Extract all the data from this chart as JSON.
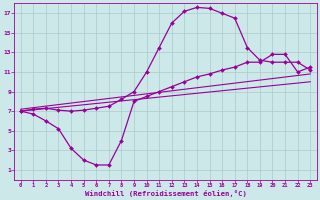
{
  "upper_x": [
    0,
    1,
    2,
    3,
    4,
    5,
    6,
    7,
    8,
    9,
    10,
    11,
    12,
    13,
    14,
    15,
    16,
    17,
    18,
    19,
    20,
    21,
    22,
    23
  ],
  "upper_y": [
    7.0,
    7.2,
    7.3,
    7.1,
    7.0,
    7.1,
    7.3,
    7.5,
    8.2,
    9.0,
    11.0,
    13.5,
    16.0,
    17.2,
    17.6,
    17.5,
    17.0,
    16.5,
    13.5,
    12.2,
    12.0,
    12.0,
    12.0,
    11.2
  ],
  "lower_x": [
    0,
    1,
    2,
    3,
    4,
    5,
    6,
    7,
    8,
    9,
    10,
    11,
    12,
    13,
    14,
    15,
    16,
    17,
    18,
    19,
    20,
    21,
    22,
    23
  ],
  "lower_y": [
    7.0,
    6.7,
    6.0,
    5.2,
    3.2,
    2.0,
    1.5,
    1.5,
    4.0,
    8.0,
    8.5,
    9.0,
    9.5,
    10.0,
    10.5,
    10.8,
    11.2,
    11.5,
    12.0,
    12.0,
    12.8,
    12.8,
    11.0,
    11.5
  ],
  "line1_x": [
    0,
    23
  ],
  "line1_y": [
    7.2,
    10.8
  ],
  "line2_x": [
    0,
    23
  ],
  "line2_y": [
    7.0,
    10.0
  ],
  "curve_color": "#990099",
  "bg_color": "#cce8e8",
  "grid_color": "#aacccc",
  "xlabel": "Windchill (Refroidissement éolien,°C)",
  "xlabel_color": "#990099",
  "tick_color": "#990099",
  "ylim": [
    0,
    18
  ],
  "xlim": [
    -0.5,
    23.5
  ],
  "yticks": [
    1,
    3,
    5,
    7,
    9,
    11,
    13,
    15,
    17
  ],
  "xticks": [
    0,
    1,
    2,
    3,
    4,
    5,
    6,
    7,
    8,
    9,
    10,
    11,
    12,
    13,
    14,
    15,
    16,
    17,
    18,
    19,
    20,
    21,
    22,
    23
  ]
}
